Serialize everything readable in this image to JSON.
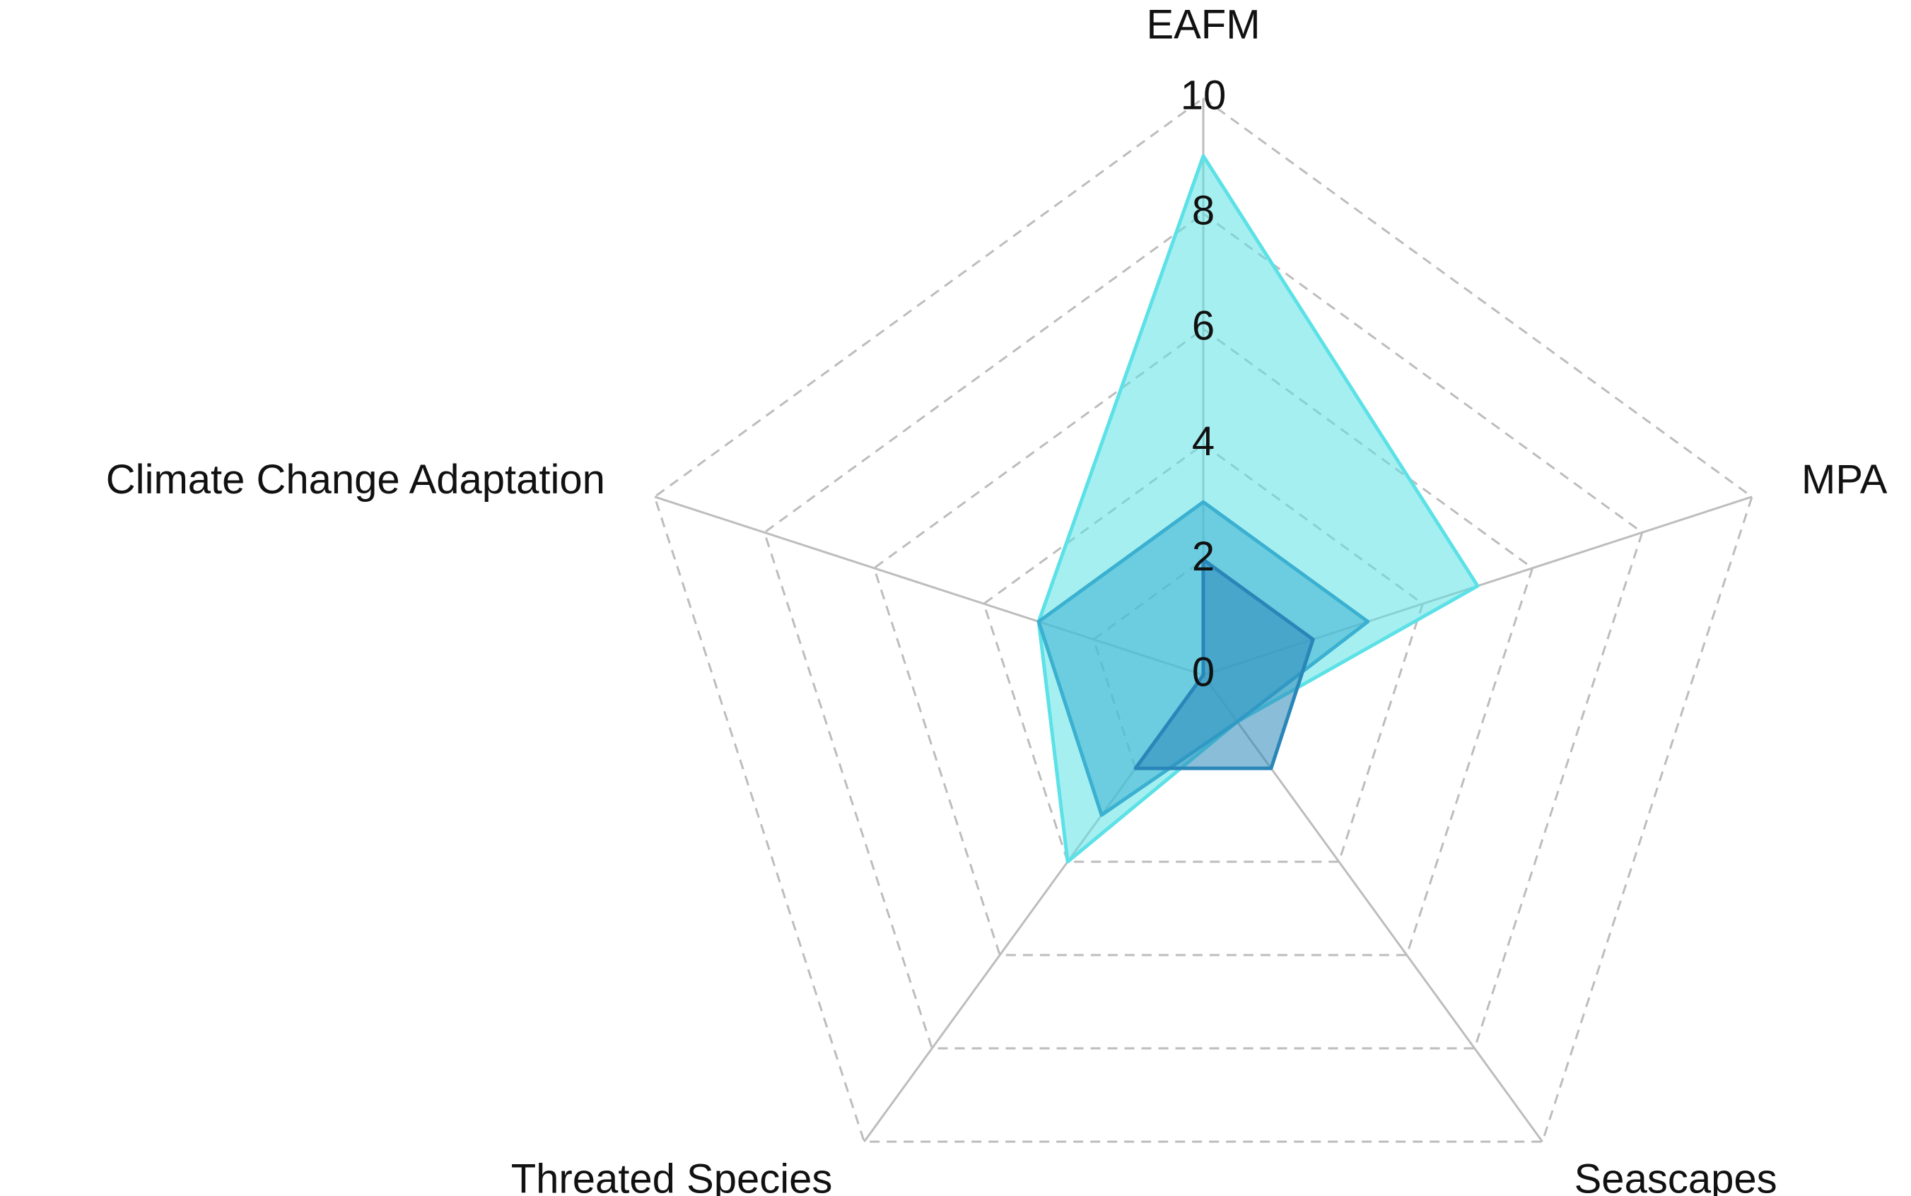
{
  "chart_data": {
    "type": "radar",
    "categories": [
      "EAFM",
      "MPA",
      "Seascapes",
      "Threated Species",
      "Climate Change Adaptation"
    ],
    "series": [
      {
        "color": "#5ce1e6",
        "values": [
          9,
          5,
          1,
          4,
          3
        ]
      },
      {
        "color": "#3bb0d0",
        "values": [
          3,
          3,
          1,
          3,
          3
        ]
      },
      {
        "color": "#2a86b8",
        "values": [
          2,
          2,
          2,
          2,
          0
        ]
      }
    ],
    "ylim": [
      0,
      10
    ],
    "yticks": [
      0,
      2,
      4,
      6,
      8,
      10
    ],
    "grid": true
  }
}
